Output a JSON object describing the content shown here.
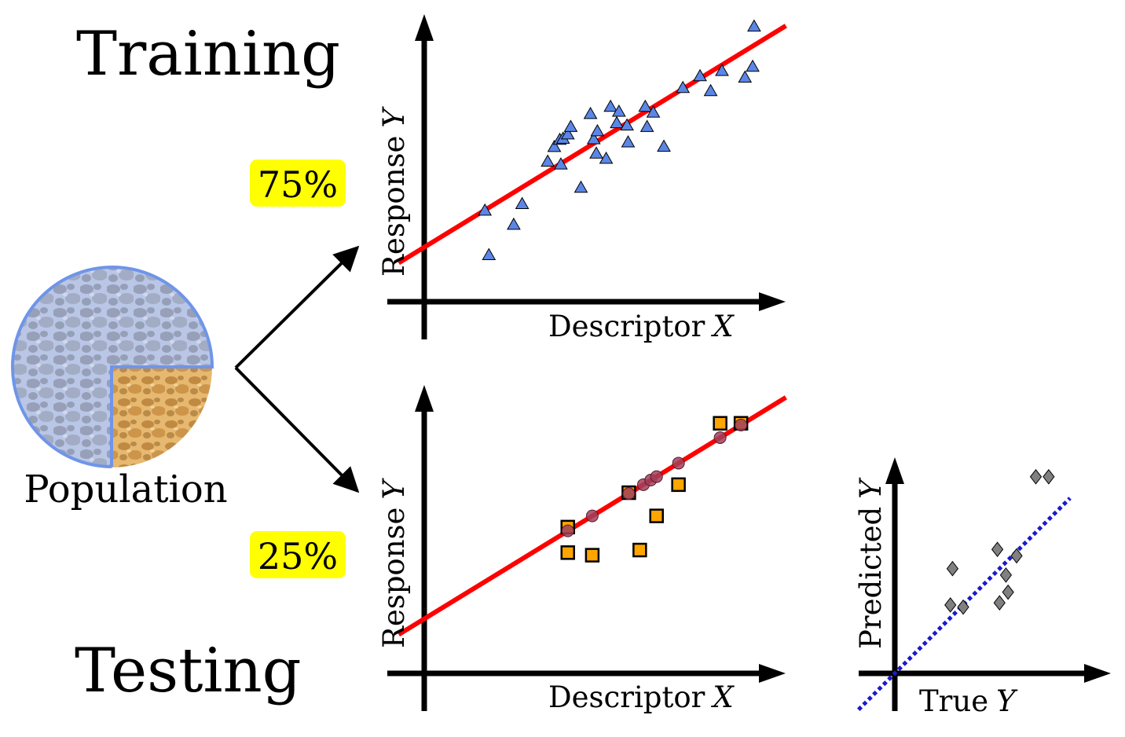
{
  "labels": {
    "training": "Training",
    "testing": "Testing",
    "population": "Population",
    "pct_train": "75%",
    "pct_test": "25%",
    "descriptor": "Descriptor",
    "response": "Response",
    "predicted": "Predicted",
    "true": "True",
    "var_x": "X",
    "var_y": "Y"
  },
  "colors": {
    "fit_line": "#ff0000",
    "train_marker": "#5b86e6",
    "test_marker": "#ffa500",
    "predicted_marker": "#a0405a",
    "parity_marker": "#808080",
    "parity_line": "#1a1acc",
    "pct_badge": "#ffff00",
    "population_outline": "#6f95e8",
    "population_train_tint": "#b9c6e6",
    "population_test_tint": "#e6b870"
  },
  "icons": {
    "population": "walnut-pile-icon"
  },
  "chart_data": [
    {
      "type": "scatter",
      "panel": "training",
      "xlabel": "Descriptor X",
      "ylabel": "Response Y",
      "xlim": [
        0,
        10
      ],
      "ylim": [
        0,
        10
      ],
      "fit_line": {
        "intercept": 1.9,
        "slope": 0.78
      },
      "series": [
        {
          "marker": "triangle",
          "x": [
            1.66,
            1.77,
            2.45,
            2.68,
            3.38,
            3.56,
            3.71,
            3.8,
            3.93,
            4.01,
            3.74,
            4.29,
            4.55,
            4.64,
            4.74,
            4.71,
            4.98,
            5.27,
            5.1,
            5.33,
            5.55,
            5.58,
            6.05,
            6.27,
            6.1,
            6.56,
            7.08,
            7.55,
            7.84,
            8.15,
            8.78,
            8.99,
            9.03
          ],
          "y": [
            3.18,
            1.63,
            2.69,
            3.41,
            4.89,
            5.4,
            5.65,
            5.69,
            5.84,
            6.1,
            4.79,
            3.98,
            6.55,
            5.67,
            5.95,
            5.17,
            4.99,
            6.23,
            6.8,
            6.63,
            6.15,
            5.56,
            6.8,
            6.6,
            6.1,
            5.41,
            7.46,
            7.87,
            7.35,
            8.05,
            7.82,
            8.2,
            9.6
          ]
        }
      ]
    },
    {
      "type": "scatter",
      "panel": "testing",
      "xlabel": "Descriptor X",
      "ylabel": "Response Y",
      "xlim": [
        0,
        10
      ],
      "ylim": [
        0,
        10
      ],
      "fit_line": {
        "intercept": 1.9,
        "slope": 0.78
      },
      "series": [
        {
          "marker": "square",
          "x": [
            3.93,
            3.93,
            4.6,
            5.6,
            5.9,
            6.36,
            6.96,
            8.1,
            8.67
          ],
          "y": [
            5.1,
            4.21,
            4.12,
            6.3,
            4.3,
            5.49,
            6.58,
            8.72,
            8.72
          ]
        },
        {
          "marker": "circle",
          "x": [
            3.93,
            4.6,
            5.6,
            6.0,
            6.2,
            6.36,
            6.96,
            8.1,
            8.67
          ],
          "y": [
            4.97,
            5.49,
            6.27,
            6.58,
            6.74,
            6.86,
            7.33,
            8.22,
            8.66
          ]
        }
      ]
    },
    {
      "type": "scatter",
      "panel": "parity",
      "xlabel": "True Y",
      "ylabel": "Predicted Y",
      "xlim": [
        0,
        10
      ],
      "ylim": [
        0,
        10
      ],
      "identity_line": true,
      "series": [
        {
          "marker": "diamond",
          "x": [
            2.6,
            2.7,
            3.2,
            4.8,
            4.9,
            5.2,
            5.3,
            5.7,
            6.6,
            7.2
          ],
          "y": [
            3.2,
            4.9,
            3.1,
            5.8,
            3.3,
            4.6,
            3.8,
            5.5,
            9.2,
            9.2
          ]
        }
      ]
    }
  ]
}
